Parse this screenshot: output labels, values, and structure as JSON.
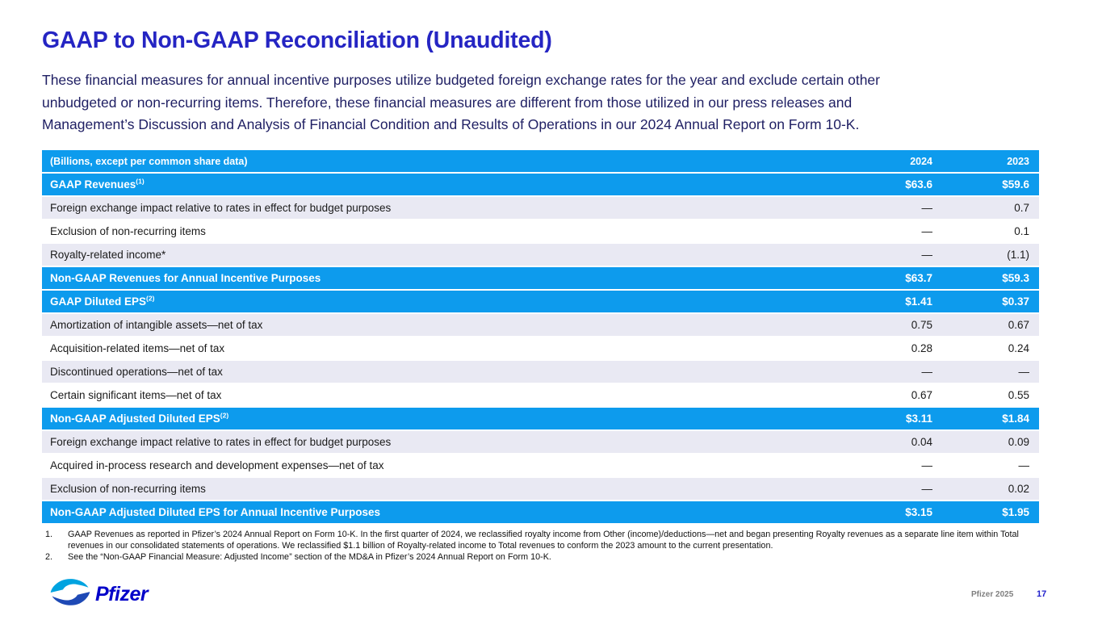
{
  "page": {
    "title": "GAAP to Non-GAAP Reconciliation (Unaudited)",
    "intro_lines": [
      "These financial measures for annual incentive purposes utilize budgeted foreign exchange rates for the year and exclude certain other",
      "unbudgeted or non-recurring items. Therefore, these financial measures are different from those utilized in our press releases and",
      "Management’s Discussion and Analysis of Financial Condition and Results of Operations in our 2024 Annual Report on Form 10-K."
    ]
  },
  "table": {
    "header": {
      "label": "(Billions, except per common share data)",
      "col_2024": "2024",
      "col_2023": "2023"
    },
    "rows": [
      {
        "label": "GAAP Revenues",
        "sup": "(1)",
        "v2024": "$63.6",
        "v2023": "$59.6",
        "style": "blue"
      },
      {
        "label": "Foreign exchange impact relative to rates in effect for budget purposes",
        "sup": "",
        "v2024": "—",
        "v2023": "0.7",
        "style": "alt"
      },
      {
        "label": "Exclusion of non-recurring items",
        "sup": "",
        "v2024": "—",
        "v2023": "0.1",
        "style": "white"
      },
      {
        "label": "Royalty-related income*",
        "sup": "",
        "v2024": "—",
        "v2023": "(1.1)",
        "style": "alt"
      },
      {
        "label": "Non-GAAP Revenues for Annual Incentive Purposes",
        "sup": "",
        "v2024": "$63.7",
        "v2023": "$59.3",
        "style": "blue"
      },
      {
        "label": "GAAP Diluted EPS",
        "sup": "(2)",
        "v2024": "$1.41",
        "v2023": "$0.37",
        "style": "blue"
      },
      {
        "label": "Amortization of intangible assets—net of tax",
        "sup": "",
        "v2024": "0.75",
        "v2023": "0.67",
        "style": "alt"
      },
      {
        "label": "Acquisition-related items—net of tax",
        "sup": "",
        "v2024": "0.28",
        "v2023": "0.24",
        "style": "white"
      },
      {
        "label": "Discontinued operations—net of tax",
        "sup": "",
        "v2024": "—",
        "v2023": "—",
        "style": "alt"
      },
      {
        "label": "Certain significant items—net of tax",
        "sup": "",
        "v2024": "0.67",
        "v2023": "0.55",
        "style": "white"
      },
      {
        "label": "Non-GAAP Adjusted Diluted EPS",
        "sup": "(2)",
        "v2024": "$3.11",
        "v2023": "$1.84",
        "style": "blue"
      },
      {
        "label": "Foreign exchange impact relative to rates in effect for budget purposes",
        "sup": "",
        "v2024": "0.04",
        "v2023": "0.09",
        "style": "alt"
      },
      {
        "label": "Acquired in-process research and development expenses—net of tax",
        "sup": "",
        "v2024": "—",
        "v2023": "—",
        "style": "white"
      },
      {
        "label": "Exclusion of non-recurring items",
        "sup": "",
        "v2024": "—",
        "v2023": "0.02",
        "style": "alt"
      },
      {
        "label": "Non-GAAP Adjusted Diluted EPS for Annual Incentive Purposes",
        "sup": "",
        "v2024": "$3.15",
        "v2023": "$1.95",
        "style": "blue"
      }
    ]
  },
  "footnotes": [
    {
      "num": "1.",
      "text": "GAAP Revenues as reported in Pfizer’s 2024 Annual Report on Form 10-K. In the first quarter of 2024, we reclassified royalty income from Other (income)/deductions—net and began presenting Royalty revenues as a separate line item within Total revenues in our consolidated statements of operations. We reclassified $1.1 billion of Royalty-related income to Total revenues to conform the 2023 amount to the current presentation."
    },
    {
      "num": "2.",
      "text": "See the “Non-GAAP Financial Measure: Adjusted Income” section of the MD&A in Pfizer’s 2024 Annual Report on Form 10-K."
    }
  ],
  "footer": {
    "logo_text": "Pfizer",
    "company": "Pfizer 2025",
    "page_number": "17"
  },
  "colors": {
    "table_blue": "#0d9bed",
    "row_alt": "#e9e9f3",
    "title_blue": "#2525c3",
    "body_navy": "#202064",
    "page_num_blue": "#2222cc",
    "logo_blue": "#0000c9",
    "logo_light_blue": "#00a3e0",
    "logo_dark_ribbon": "#1e49b5",
    "footer_gray": "#7f7f7f"
  }
}
